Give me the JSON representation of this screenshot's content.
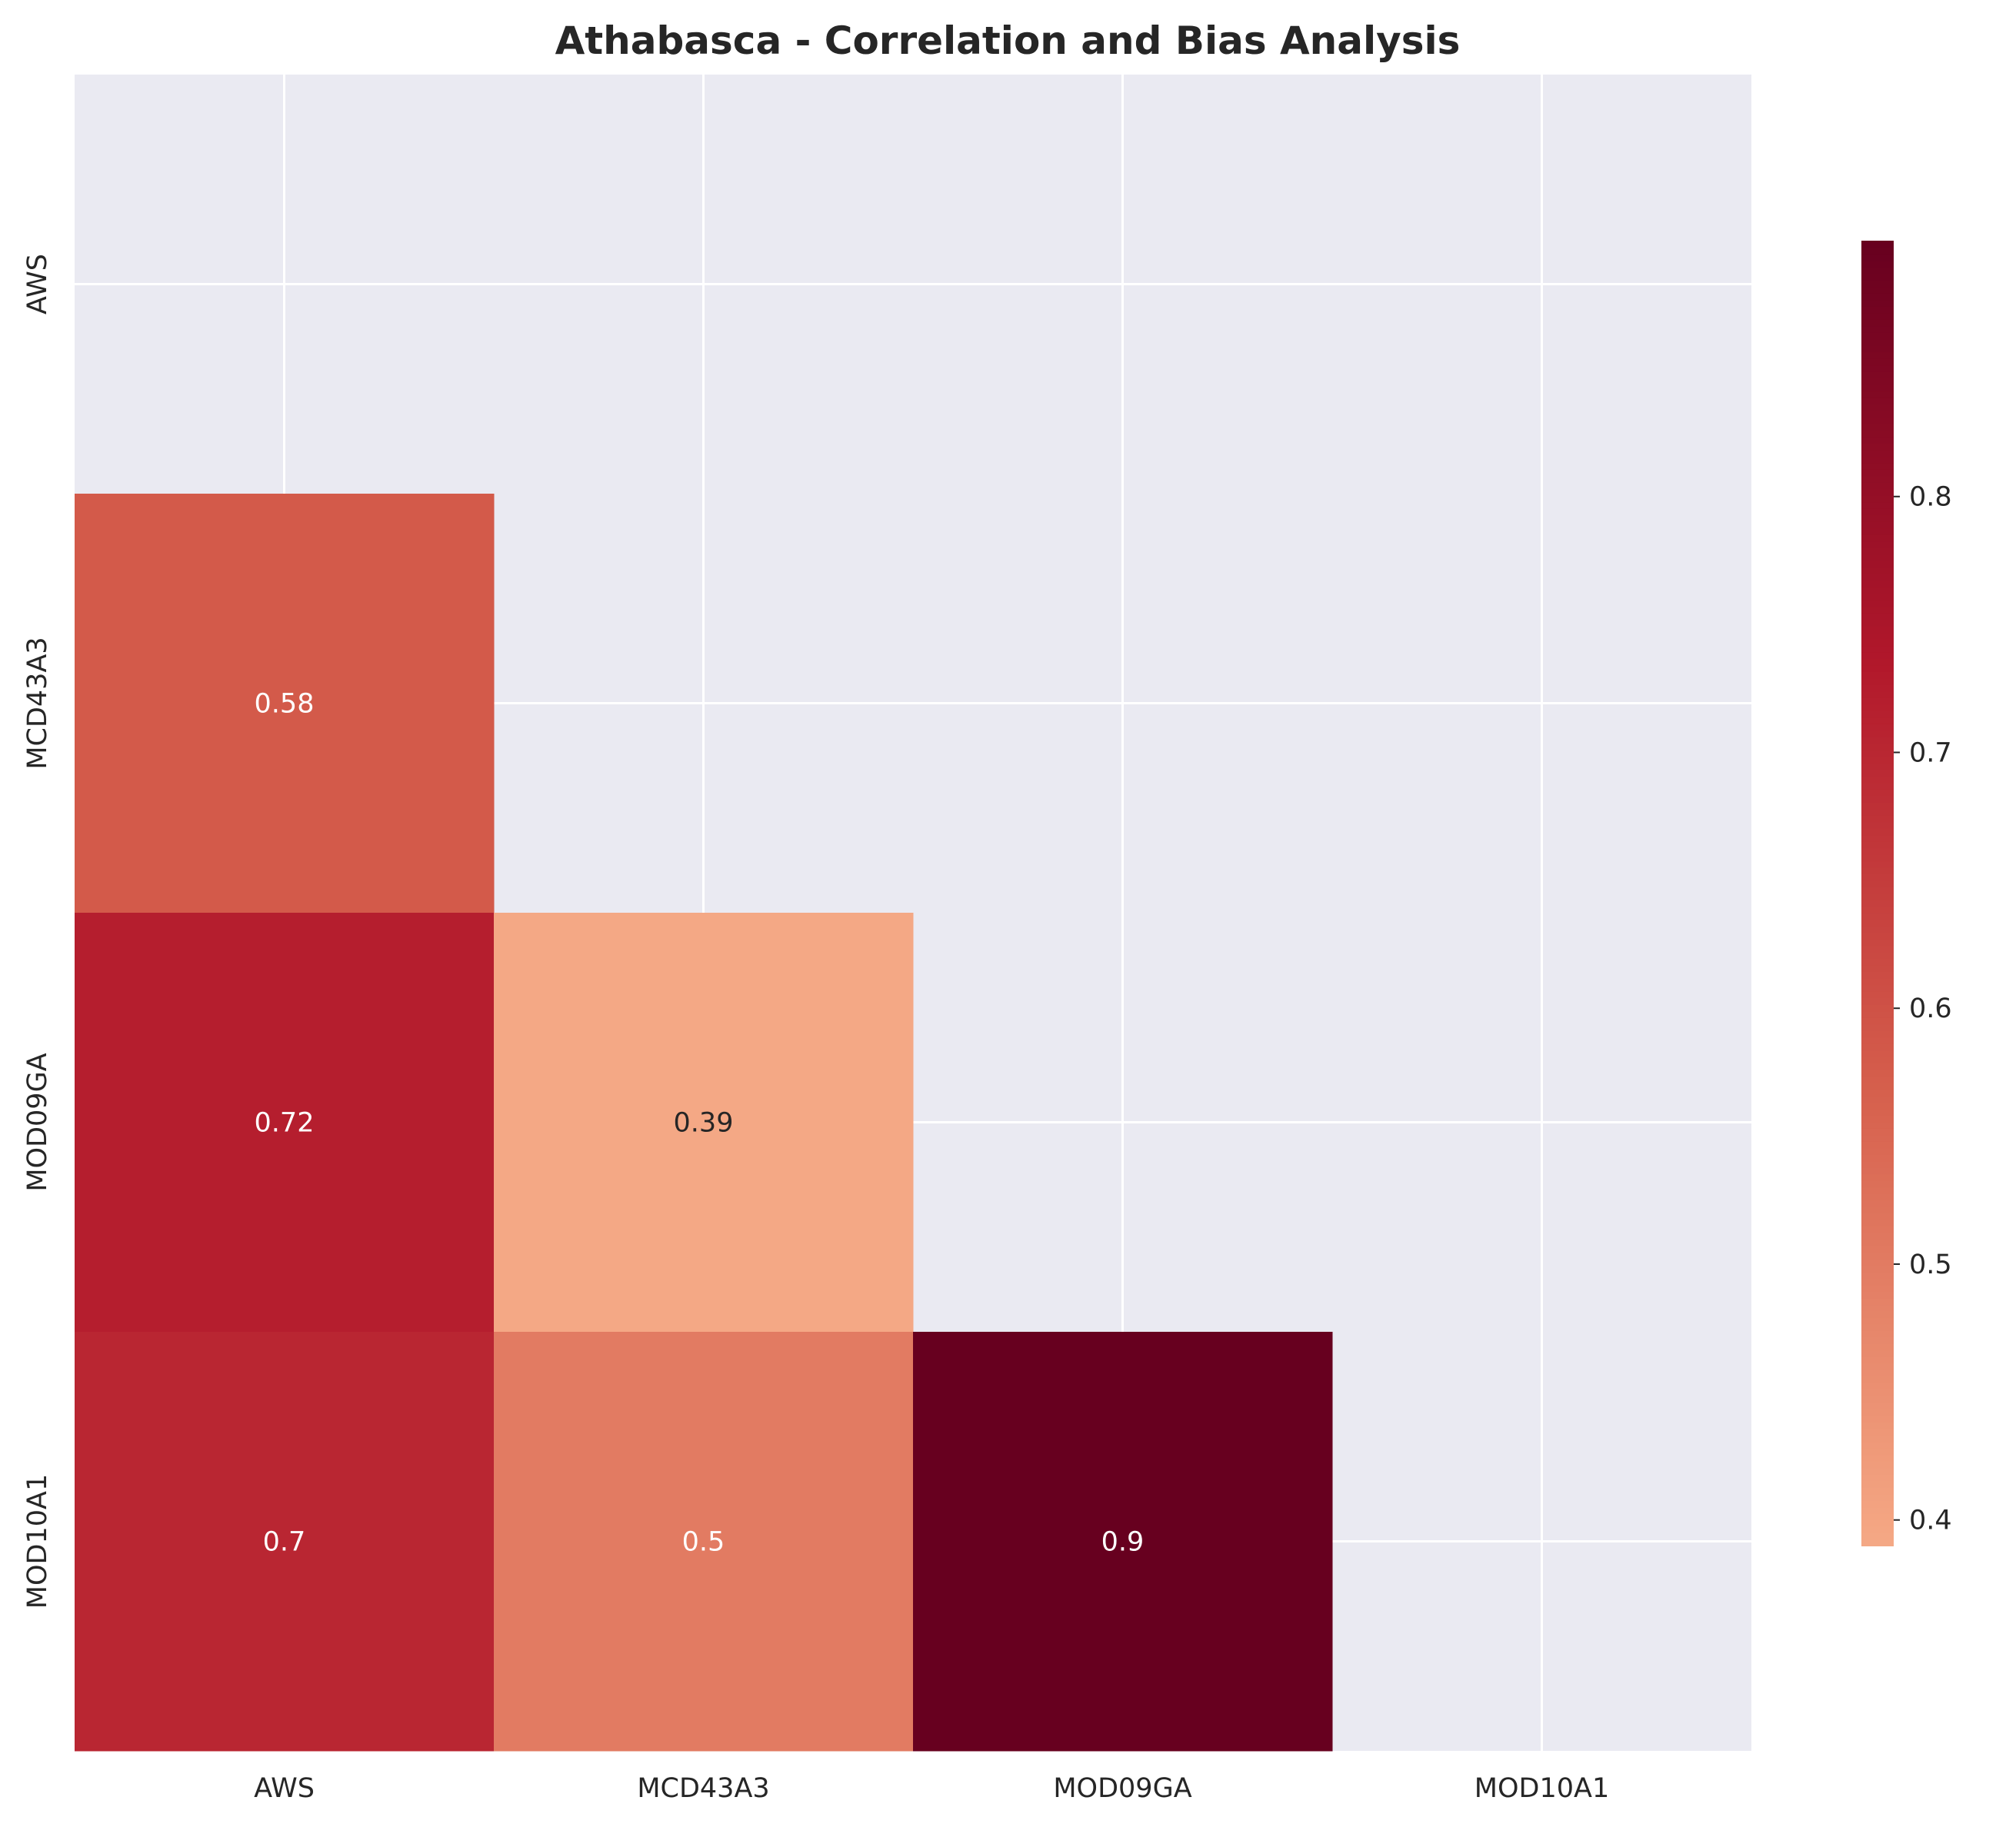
{
  "chart_data": {
    "type": "heatmap",
    "title": "Athabasca - Correlation and Bias Analysis",
    "xlabel": "",
    "ylabel": "",
    "x_categories": [
      "AWS",
      "MCD43A3",
      "MOD09GA",
      "MOD10A1"
    ],
    "y_categories": [
      "AWS",
      "MCD43A3",
      "MOD09GA",
      "MOD10A1"
    ],
    "mask": "upper-triangle-including-diagonal",
    "cells": [
      {
        "row": "MCD43A3",
        "col": "AWS",
        "value": 0.58,
        "label": "0.58"
      },
      {
        "row": "MOD09GA",
        "col": "AWS",
        "value": 0.72,
        "label": "0.72"
      },
      {
        "row": "MOD09GA",
        "col": "MCD43A3",
        "value": 0.39,
        "label": "0.39"
      },
      {
        "row": "MOD10A1",
        "col": "AWS",
        "value": 0.7,
        "label": "0.7"
      },
      {
        "row": "MOD10A1",
        "col": "MCD43A3",
        "value": 0.5,
        "label": "0.5"
      },
      {
        "row": "MOD10A1",
        "col": "MOD09GA",
        "value": 0.9,
        "label": "0.9"
      }
    ],
    "colormap": "RdBu_r (upper half)",
    "color_range": [
      0.39,
      0.9
    ],
    "colorbar_ticks": [
      "0.4",
      "0.5",
      "0.6",
      "0.7",
      "0.8"
    ],
    "grid": true,
    "background_color": "#eaeaf2",
    "grid_color": "#ffffff"
  }
}
